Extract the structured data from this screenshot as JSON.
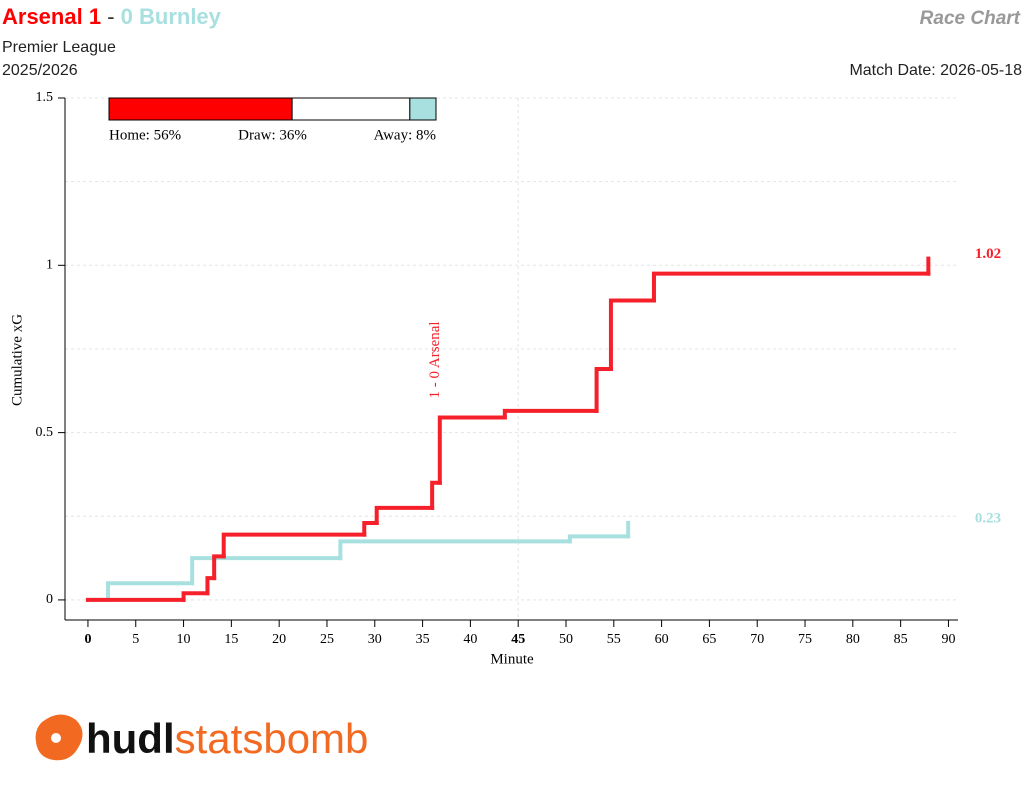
{
  "header": {
    "home": "Arsenal 1",
    "separator": "-",
    "away": "0 Burnley",
    "chart_name": "Race Chart",
    "competition": "Premier League",
    "season": "2025/2026",
    "match_date": "Match Date: 2026-05-18"
  },
  "probabilities": [
    {
      "label": "Home: 56%",
      "value": 56,
      "color": "#ff0000"
    },
    {
      "label": "Draw: 36%",
      "value": 36,
      "color": "#ffffff"
    },
    {
      "label": "Away: 8%",
      "value": 8,
      "color": "#a8e0e0"
    }
  ],
  "chart_data": {
    "type": "step",
    "x_label": "Minute",
    "y_label": "Cumulative xG",
    "xlim": [
      -2.4,
      91
    ],
    "ylim": [
      -0.06,
      1.5
    ],
    "xticks": [
      0,
      5,
      10,
      15,
      20,
      25,
      30,
      35,
      40,
      45,
      50,
      55,
      60,
      65,
      70,
      75,
      80,
      85,
      90
    ],
    "bold_xticks": [
      0,
      45
    ],
    "yticks": [
      0,
      0.5,
      1,
      1.5
    ],
    "grid_y": [
      0,
      0.25,
      0.5,
      0.75,
      1,
      1.25,
      1.5
    ],
    "grid_x": [
      45
    ],
    "series": [
      {
        "name": "Arsenal",
        "color": "#f5202a",
        "total": 1.02,
        "x": [
          0,
          10,
          12.5,
          13.2,
          14.2,
          28.9,
          30.2,
          36,
          36.8,
          43.6,
          53.2,
          54.7,
          59.2,
          87.9
        ],
        "values": [
          0,
          0.02,
          0.065,
          0.13,
          0.195,
          0.23,
          0.275,
          0.35,
          0.545,
          0.565,
          0.69,
          0.895,
          0.975,
          1.02
        ]
      },
      {
        "name": "Burnley",
        "color": "#a8e0e0",
        "total": 0.23,
        "x": [
          0,
          2.1,
          10.9,
          26.4,
          50.4,
          56.5
        ],
        "values": [
          0,
          0.05,
          0.125,
          0.175,
          0.19,
          0.23
        ]
      }
    ],
    "goals": [
      {
        "minute": 36.8,
        "label": "1 - 0 Arsenal"
      }
    ]
  },
  "logo": {
    "part1": "hudl",
    "part2": "statsbomb"
  }
}
